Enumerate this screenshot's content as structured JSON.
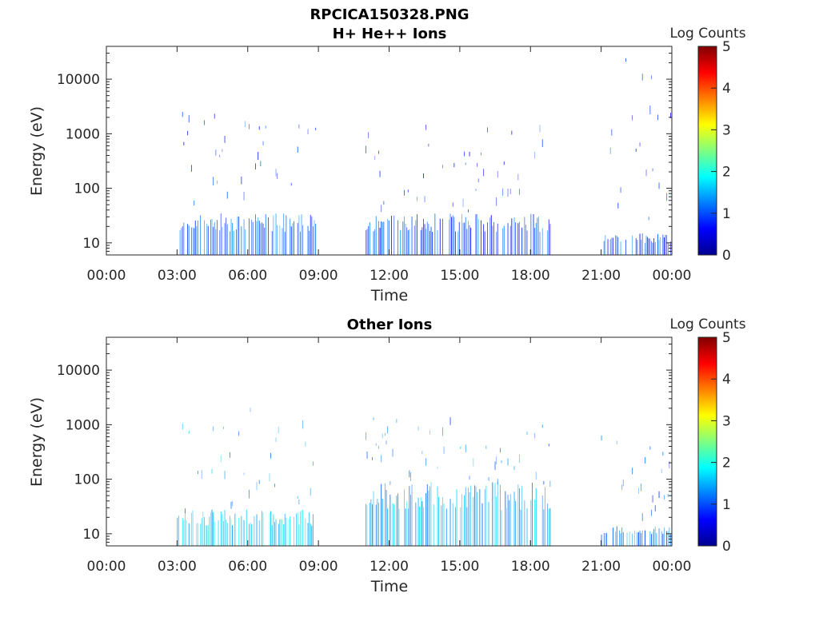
{
  "figure_title": "RPCICA150328.PNG",
  "chart_data": [
    {
      "type": "heatmap",
      "title": "H+ He++ Ions",
      "xlabel": "Time",
      "ylabel": "Energy (eV)",
      "yscale": "log",
      "x_range_hours": [
        0,
        24
      ],
      "ylim": [
        6,
        40000
      ],
      "x_ticks": [
        "00:00",
        "03:00",
        "06:00",
        "09:00",
        "12:00",
        "15:00",
        "18:00",
        "21:00",
        "00:00"
      ],
      "y_ticks": [
        "10",
        "100",
        "1000",
        "10000"
      ],
      "y_tick_values": [
        10,
        100,
        1000,
        10000
      ],
      "colorbar": {
        "label": "Log Counts",
        "min": 0,
        "max": 5,
        "ticks": [
          "0",
          "1",
          "2",
          "3",
          "4",
          "5"
        ]
      },
      "segments": [
        {
          "start_hour": 3.0,
          "end_hour": 8.9,
          "low_band": [
            6,
            35
          ],
          "sparse_max": 3000,
          "base_level": 0.7
        },
        {
          "start_hour": 11.0,
          "end_hour": 18.9,
          "low_band": [
            6,
            35
          ],
          "sparse_max": 1500,
          "base_level": 0.6
        },
        {
          "start_hour": 21.0,
          "end_hour": 24.0,
          "low_band": [
            6,
            15
          ],
          "sparse_max": 30000,
          "base_level": 0.6
        }
      ]
    },
    {
      "type": "heatmap",
      "title": "Other Ions",
      "xlabel": "Time",
      "ylabel": "Energy (eV)",
      "yscale": "log",
      "x_range_hours": [
        0,
        24
      ],
      "ylim": [
        6,
        40000
      ],
      "x_ticks": [
        "00:00",
        "03:00",
        "06:00",
        "09:00",
        "12:00",
        "15:00",
        "18:00",
        "21:00",
        "00:00"
      ],
      "y_ticks": [
        "10",
        "100",
        "1000",
        "10000"
      ],
      "y_tick_values": [
        10,
        100,
        1000,
        10000
      ],
      "colorbar": {
        "label": "Log Counts",
        "min": 0,
        "max": 5,
        "ticks": [
          "0",
          "1",
          "2",
          "3",
          "4",
          "5"
        ]
      },
      "segments": [
        {
          "start_hour": 3.0,
          "end_hour": 8.9,
          "low_band": [
            6,
            28
          ],
          "sparse_max": 2500,
          "base_level": 1.3
        },
        {
          "start_hour": 11.0,
          "end_hour": 18.9,
          "low_band": [
            6,
            90
          ],
          "sparse_max": 1500,
          "base_level": 1.1
        },
        {
          "start_hour": 21.0,
          "end_hour": 24.0,
          "low_band": [
            6,
            14
          ],
          "sparse_max": 900,
          "base_level": 0.9
        }
      ]
    }
  ]
}
